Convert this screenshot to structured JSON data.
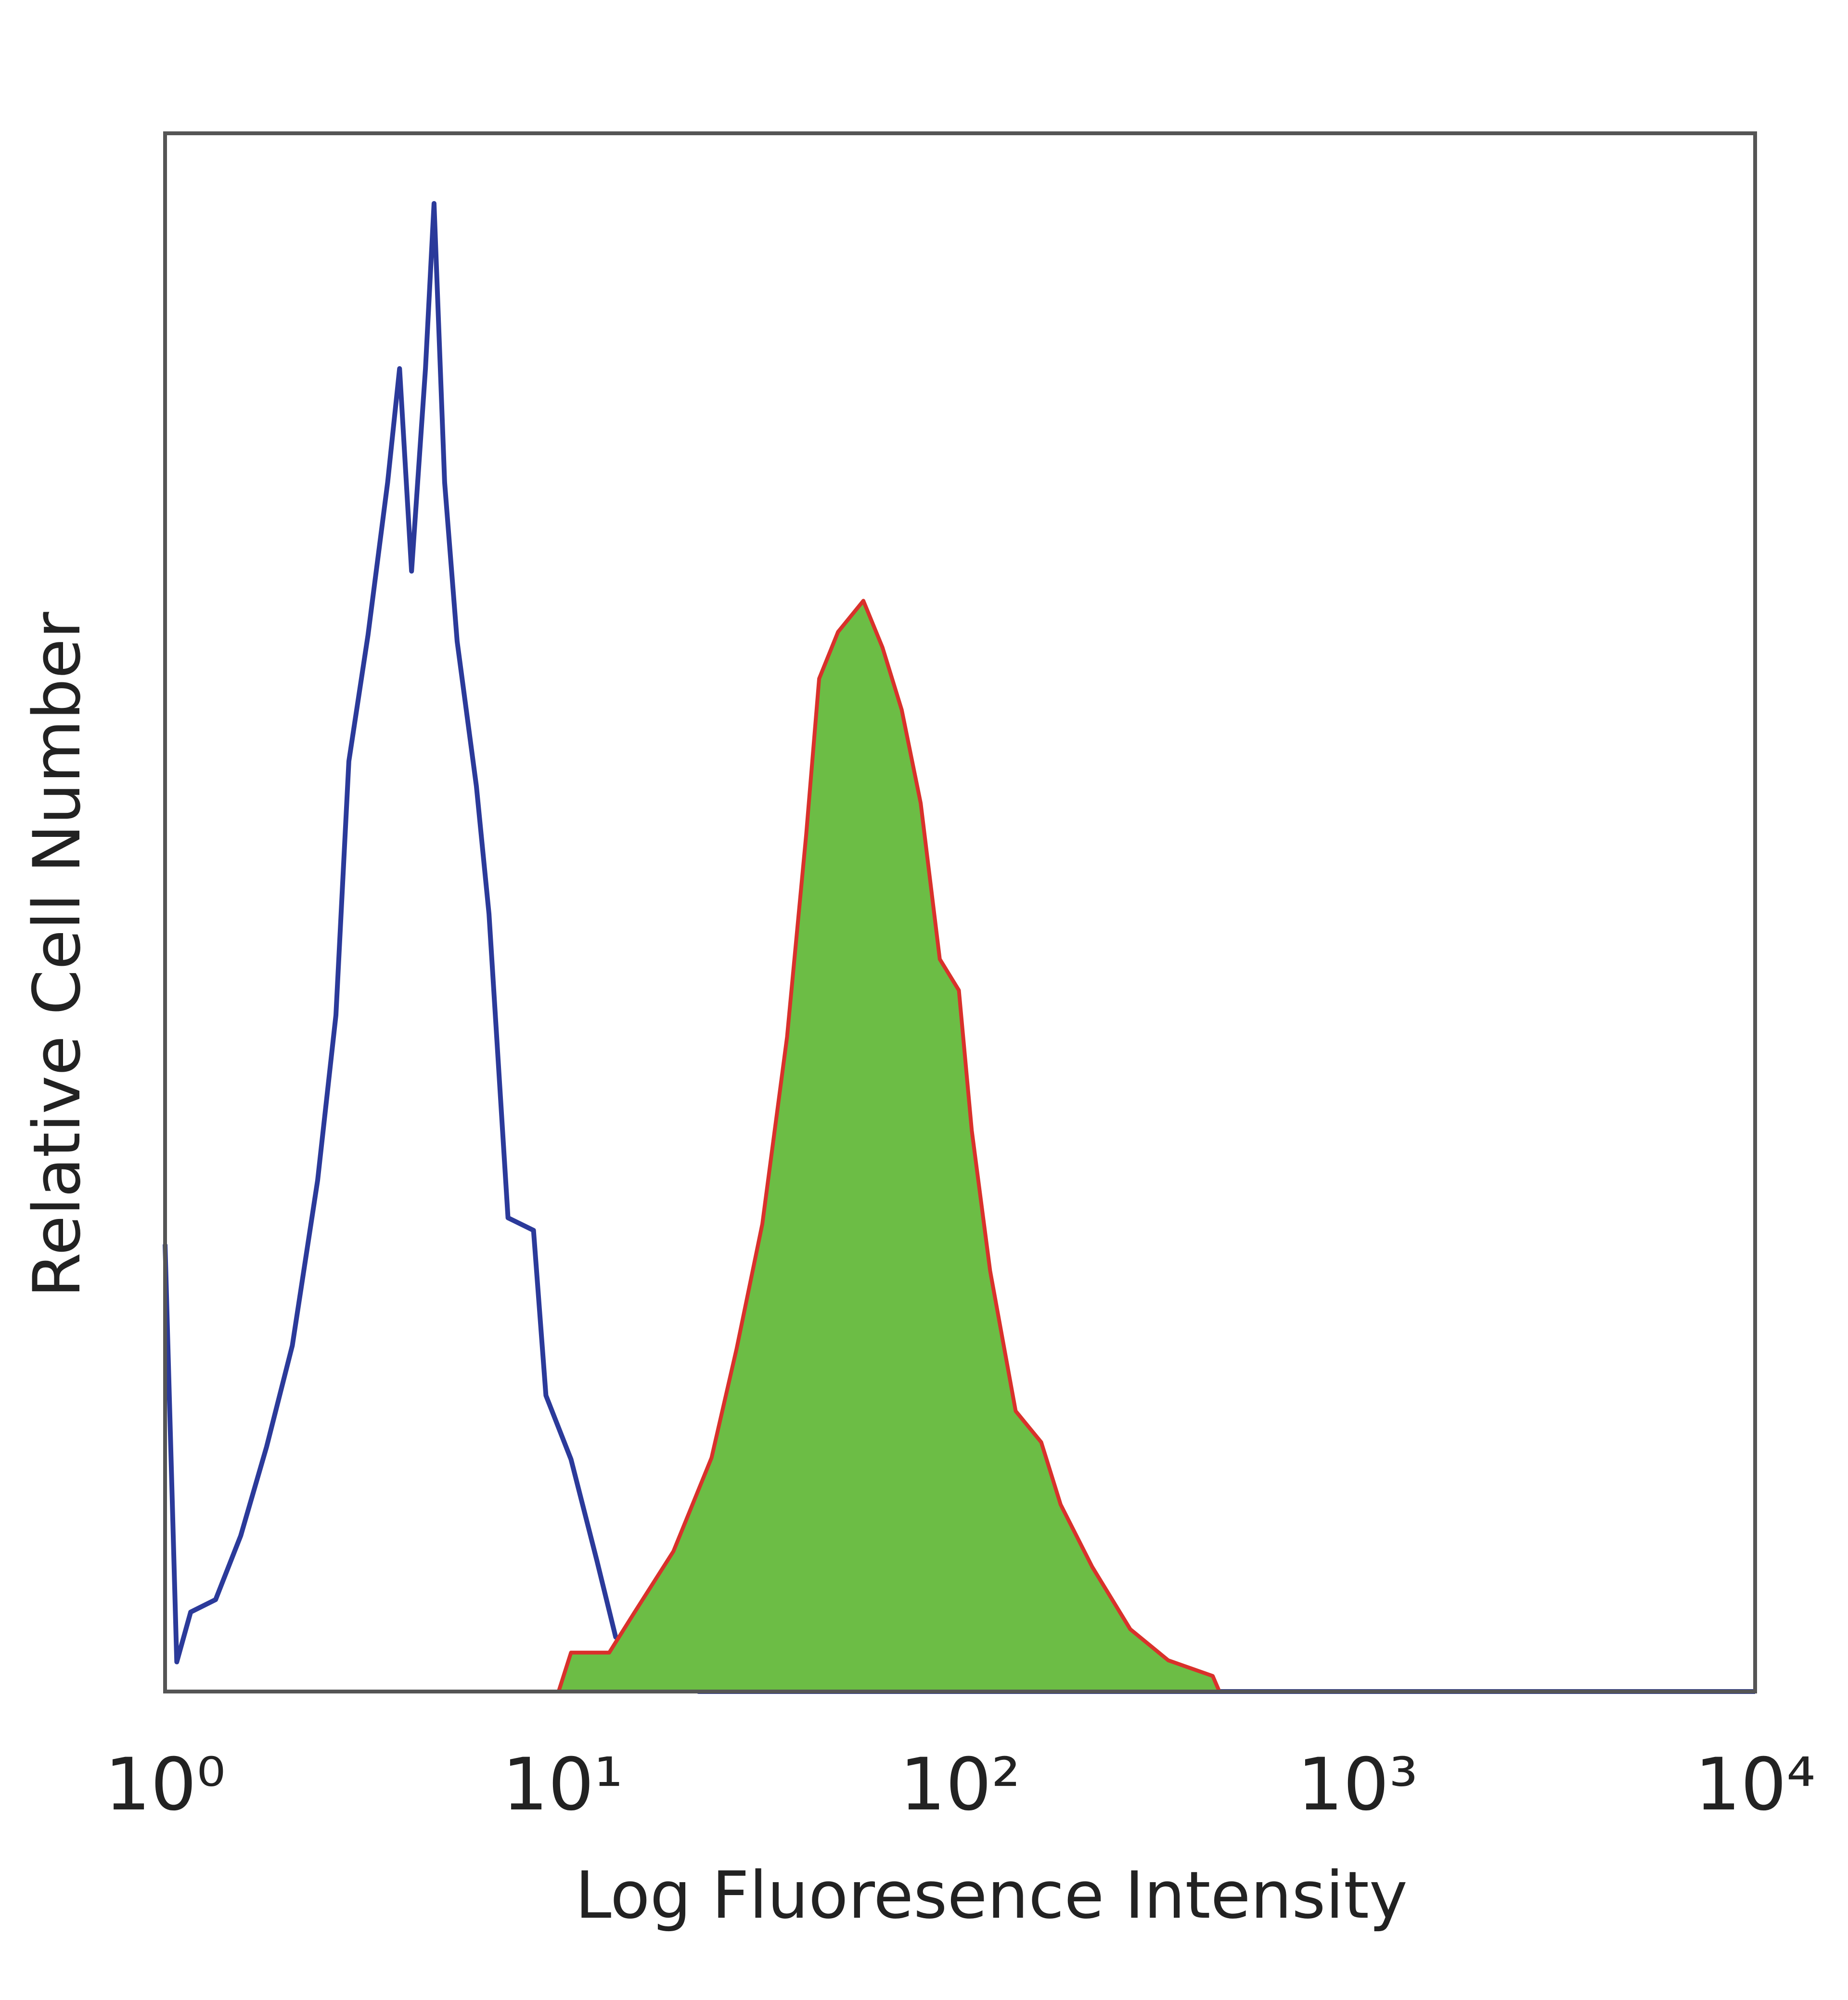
{
  "chart_data": {
    "type": "line",
    "xlabel": "Log Fluoresence Intensity",
    "ylabel": "Relative Cell Number",
    "xscale": "log",
    "xlim": [
      1,
      10000
    ],
    "ylim": [
      0,
      100
    ],
    "xticks": [
      {
        "value": 1,
        "label": "10⁰"
      },
      {
        "value": 10,
        "label": "10¹"
      },
      {
        "value": 100,
        "label": "10²"
      },
      {
        "value": 1000,
        "label": "10³"
      },
      {
        "value": 10000,
        "label": "10⁴"
      }
    ],
    "series": [
      {
        "color": "#2b3a9a",
        "fill": false,
        "x": [
          1,
          1.07,
          1.16,
          1.34,
          1.55,
          1.8,
          2.09,
          2.42,
          2.69,
          2.9,
          3.24,
          3.63,
          3.89,
          4.17,
          4.52,
          4.75,
          5.05,
          5.43,
          6.07,
          6.53,
          7.29,
          8.45,
          9.08,
          10.5,
          12.2,
          13.6,
          15.1,
          19.0,
          22.0,
          10000
        ],
        "values": [
          28.7,
          1.9,
          5.1,
          5.9,
          10,
          15.7,
          22.2,
          32.8,
          43.4,
          59.7,
          67.8,
          77.6,
          84.9,
          71.9,
          84.9,
          95.5,
          77.6,
          67.4,
          58.1,
          49.9,
          30.4,
          29.6,
          19,
          14.9,
          8.4,
          3.5,
          2.7,
          1.9,
          0,
          0
        ]
      },
      {
        "color": "#6cbd45",
        "edgecolor": "#d9312b",
        "fill": true,
        "x": [
          1,
          9.77,
          10.5,
          13.1,
          15.1,
          19.0,
          23.7,
          27.4,
          31.8,
          36.7,
          41.0,
          44.2,
          49.3,
          57.1,
          63.8,
          71.3,
          79.6,
          88.9,
          99.3,
          107,
          119,
          138,
          160,
          179,
          215,
          268,
          334,
          432,
          449,
          10000
        ],
        "values": [
          0,
          0,
          2.5,
          2.5,
          5,
          9,
          15,
          22,
          30,
          42,
          55,
          65,
          68,
          70,
          67,
          63,
          57,
          47,
          45,
          36,
          27,
          18,
          16,
          12,
          8,
          4,
          2,
          1,
          0,
          0
        ]
      }
    ]
  }
}
